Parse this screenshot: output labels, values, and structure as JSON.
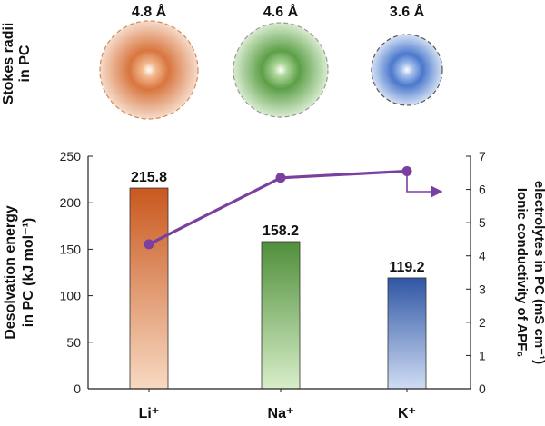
{
  "chart_data": {
    "type": "bar+line",
    "categories": [
      "Li⁺",
      "Na⁺",
      "K⁺"
    ],
    "stokes_radii": {
      "label_line1": "Stokes radii",
      "label_line2": "in PC",
      "unit": "Å",
      "values": [
        4.8,
        4.6,
        3.6
      ],
      "labels": [
        "4.8 Å",
        "4.6 Å",
        "3.6 Å"
      ],
      "colors": [
        "#c8551c",
        "#4e9a3a",
        "#3f6fc8"
      ]
    },
    "bars": {
      "name": "Desolvation energy",
      "values": [
        215.8,
        158.2,
        119.2
      ],
      "labels": [
        "215.8",
        "158.2",
        "119.2"
      ],
      "colors_top": [
        "#c9581e",
        "#4f8f3a",
        "#2f56a3"
      ],
      "colors_bottom": [
        "#f8d9c2",
        "#d8eec9",
        "#cfdcf4"
      ]
    },
    "line": {
      "name": "Ionic conductivity",
      "values": [
        4.35,
        6.35,
        6.55
      ],
      "color": "#7b3fa0"
    },
    "left_axis": {
      "label_line1": "Desolvation energy",
      "label_line2": "in PC (kJ mol⁻¹)",
      "ylim": [
        0,
        250
      ],
      "ticks": [
        "0",
        "50",
        "100",
        "150",
        "200",
        "250"
      ]
    },
    "right_axis": {
      "label_line1": "Ionic conductivity of APF₆",
      "label_line2": "electrolytes in PC (mS cm⁻¹)",
      "ylim": [
        0,
        7
      ],
      "ticks": [
        "0",
        "1",
        "2",
        "3",
        "4",
        "5",
        "6",
        "7"
      ]
    }
  }
}
